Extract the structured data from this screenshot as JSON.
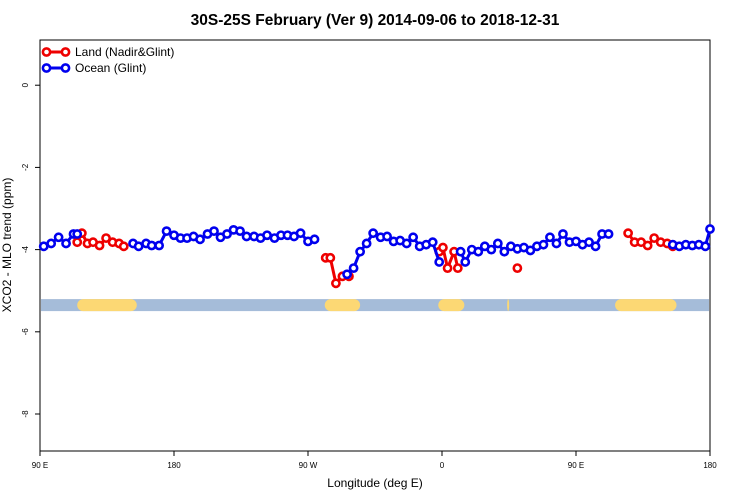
{
  "chart_data": {
    "type": "line",
    "title": "30S-25S February (Ver 9)   2014-09-06 to 2018-12-31",
    "xlabel": "Longitude (deg E)",
    "ylabel": "XCO2 - MLO trend (ppm)",
    "xlim": [
      90,
      450
    ],
    "ylim": [
      -8.9,
      1.1
    ],
    "x_ticks": [
      {
        "value": 90,
        "label": "90 E"
      },
      {
        "value": 162,
        "label": "180"
      },
      {
        "value": 234,
        "label": "90 W"
      },
      {
        "value": 306,
        "label": "0"
      },
      {
        "value": 378,
        "label": "90 E"
      },
      {
        "value": 450,
        "label": "180"
      }
    ],
    "y_ticks": [
      {
        "value": 0,
        "label": "0"
      },
      {
        "value": -2,
        "label": "-2"
      },
      {
        "value": -4,
        "label": "-4"
      },
      {
        "value": -6,
        "label": "-6"
      },
      {
        "value": -8,
        "label": "-8"
      }
    ],
    "grid": false,
    "legend_position": "top-left",
    "land_sea_band": {
      "y": -5.35,
      "ocean_color": "#a5bcd9",
      "land_color": "#fcd874",
      "land_segments": [
        [
          110,
          142
        ],
        [
          243,
          262
        ],
        [
          304,
          318
        ],
        [
          341,
          342
        ],
        [
          399,
          432
        ]
      ]
    },
    "series": [
      {
        "name": "Land (Nadir&Glint)",
        "color": "#ee0000",
        "segments": [
          [
            [
              110,
              -3.82
            ],
            [
              112.5,
              -3.6
            ],
            [
              115.5,
              -3.85
            ],
            [
              118.5,
              -3.82
            ],
            [
              122,
              -3.9
            ],
            [
              125.5,
              -3.72
            ],
            [
              129,
              -3.82
            ],
            [
              132.5,
              -3.85
            ],
            [
              135,
              -3.92
            ]
          ],
          [
            [
              243.5,
              -4.2
            ],
            [
              246,
              -4.2
            ],
            [
              249,
              -4.82
            ],
            [
              252.5,
              -4.65
            ],
            [
              256,
              -4.65
            ]
          ],
          [
            [
              304.5,
              -4.05
            ],
            [
              306.5,
              -3.95
            ],
            [
              309,
              -4.45
            ],
            [
              312.5,
              -4.05
            ],
            [
              314.5,
              -4.45
            ]
          ],
          [
            [
              346.5,
              -4.45
            ]
          ],
          [
            [
              406,
              -3.6
            ],
            [
              409.5,
              -3.82
            ],
            [
              413,
              -3.82
            ],
            [
              416.5,
              -3.9
            ],
            [
              420,
              -3.72
            ],
            [
              423.5,
              -3.82
            ],
            [
              427,
              -3.85
            ],
            [
              430,
              -3.92
            ]
          ]
        ]
      },
      {
        "name": "Ocean (Glint)",
        "color": "#0000ee",
        "segments": [
          [
            [
              92,
              -3.92
            ],
            [
              96,
              -3.85
            ],
            [
              100,
              -3.7
            ],
            [
              104,
              -3.85
            ],
            [
              108,
              -3.62
            ],
            [
              110,
              -3.62
            ]
          ],
          [
            [
              140,
              -3.85
            ],
            [
              143,
              -3.92
            ],
            [
              147,
              -3.85
            ],
            [
              150,
              -3.9
            ],
            [
              154,
              -3.9
            ],
            [
              158,
              -3.55
            ],
            [
              162,
              -3.65
            ],
            [
              165.5,
              -3.72
            ],
            [
              169,
              -3.72
            ],
            [
              172.5,
              -3.68
            ],
            [
              176,
              -3.75
            ],
            [
              180,
              -3.62
            ],
            [
              183.5,
              -3.55
            ],
            [
              187,
              -3.7
            ],
            [
              190.5,
              -3.62
            ],
            [
              194,
              -3.52
            ],
            [
              197.5,
              -3.55
            ],
            [
              201,
              -3.68
            ],
            [
              205,
              -3.68
            ],
            [
              208.5,
              -3.72
            ],
            [
              212,
              -3.65
            ],
            [
              216,
              -3.72
            ],
            [
              219.5,
              -3.65
            ],
            [
              223,
              -3.65
            ],
            [
              226.5,
              -3.68
            ],
            [
              230,
              -3.6
            ],
            [
              234,
              -3.8
            ],
            [
              237.5,
              -3.75
            ]
          ],
          [
            [
              255,
              -4.6
            ],
            [
              258.5,
              -4.45
            ],
            [
              262,
              -4.05
            ],
            [
              265.5,
              -3.85
            ],
            [
              269,
              -3.6
            ],
            [
              273,
              -3.7
            ],
            [
              276.5,
              -3.68
            ],
            [
              280,
              -3.8
            ],
            [
              283.5,
              -3.78
            ],
            [
              287,
              -3.85
            ],
            [
              290.5,
              -3.7
            ],
            [
              294,
              -3.92
            ],
            [
              297.5,
              -3.88
            ],
            [
              301,
              -3.82
            ],
            [
              304.5,
              -4.3
            ]
          ],
          [
            [
              316,
              -4.05
            ],
            [
              318.5,
              -4.3
            ],
            [
              322,
              -4.0
            ],
            [
              325.5,
              -4.05
            ],
            [
              329,
              -3.92
            ],
            [
              332.5,
              -4.0
            ],
            [
              336,
              -3.85
            ],
            [
              339.5,
              -4.05
            ],
            [
              343,
              -3.92
            ],
            [
              346.5,
              -3.98
            ],
            [
              350,
              -3.95
            ],
            [
              353.5,
              -4.02
            ],
            [
              357,
              -3.92
            ],
            [
              360.5,
              -3.88
            ],
            [
              364,
              -3.7
            ],
            [
              367.5,
              -3.85
            ],
            [
              371,
              -3.62
            ],
            [
              374.5,
              -3.82
            ],
            [
              378,
              -3.8
            ],
            [
              381.5,
              -3.88
            ],
            [
              385,
              -3.82
            ],
            [
              388.5,
              -3.92
            ],
            [
              392,
              -3.62
            ],
            [
              395.5,
              -3.62
            ]
          ],
          [
            [
              430,
              -3.88
            ],
            [
              433.5,
              -3.92
            ],
            [
              437,
              -3.88
            ],
            [
              440.5,
              -3.9
            ],
            [
              444,
              -3.88
            ],
            [
              447.5,
              -3.92
            ],
            [
              450,
              -3.5
            ]
          ]
        ]
      }
    ]
  }
}
